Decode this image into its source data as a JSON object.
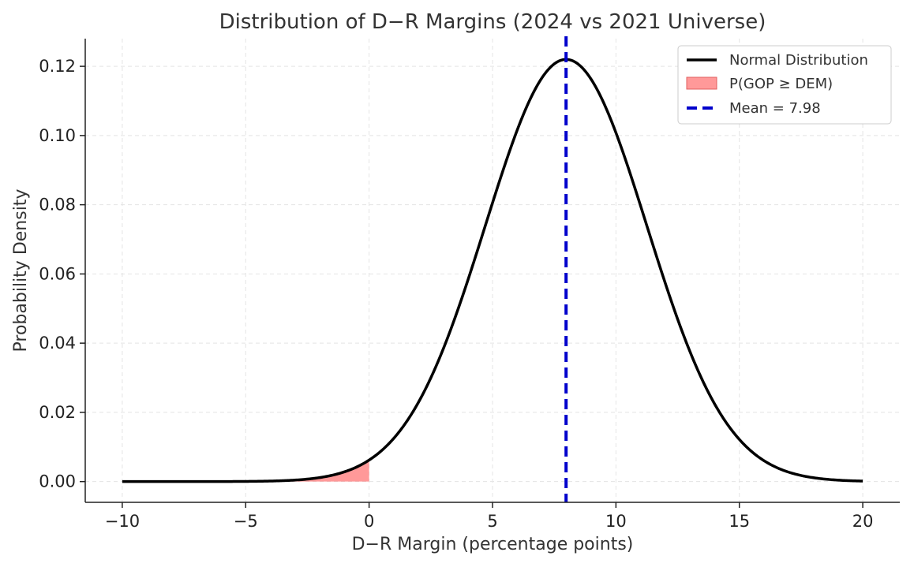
{
  "chart_data": {
    "type": "line",
    "title": "Distribution of D−R Margins (2024 vs 2021 Universe)",
    "xlabel": "D−R Margin (percentage points)",
    "ylabel": "Probability Density",
    "xlim": [
      -11.5,
      21.5
    ],
    "ylim": [
      -0.006,
      0.128
    ],
    "xticks": [
      -10,
      -5,
      0,
      5,
      10,
      15,
      20
    ],
    "xtick_labels": [
      "−10",
      "−5",
      "0",
      "5",
      "10",
      "15",
      "20"
    ],
    "yticks": [
      0.0,
      0.02,
      0.04,
      0.06,
      0.08,
      0.1,
      0.12
    ],
    "ytick_labels": [
      "0.00",
      "0.02",
      "0.04",
      "0.06",
      "0.08",
      "0.10",
      "0.12"
    ],
    "grid": true,
    "legend_position": "top-right",
    "series": [
      {
        "name": "Normal Distribution",
        "kind": "normal_pdf",
        "mean": 7.98,
        "std": 3.27,
        "x_range": [
          -10,
          20
        ],
        "color": "#000000"
      }
    ],
    "shaded_region": {
      "name": "P(GOP ≥ DEM)",
      "x_from": -10,
      "x_to": 0,
      "color": "#ff8080"
    },
    "mean_line": {
      "name": "Mean = 7.98",
      "x": 7.98,
      "color": "#0000cc"
    },
    "legend": [
      {
        "label": "Normal Distribution",
        "kind": "line",
        "color": "#000000"
      },
      {
        "label": "P(GOP ≥ DEM)",
        "kind": "patch",
        "color": "#ff8080"
      },
      {
        "label": "Mean = 7.98",
        "kind": "dashed",
        "color": "#0000cc"
      }
    ]
  }
}
